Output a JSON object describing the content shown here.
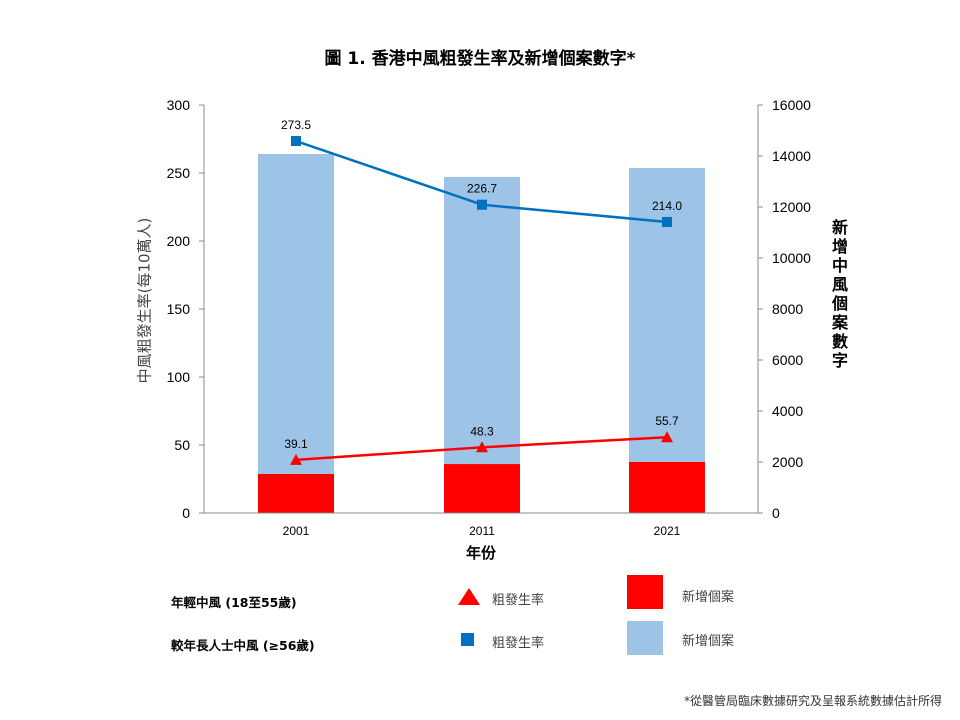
{
  "chart_data": {
    "type": "bar+line",
    "title": "圖 1. 香港中風粗發生率及新增個案數字*",
    "xlabel": "年份",
    "ylabel_left": "中風粗發生率(每10萬人)",
    "ylabel_right": "新增中風個案數字",
    "categories": [
      "2001",
      "2011",
      "2021"
    ],
    "ylim_left": [
      0,
      300
    ],
    "yticks_left": [
      "0",
      "50",
      "100",
      "150",
      "200",
      "250",
      "300"
    ],
    "ylim_right": [
      0,
      16000
    ],
    "yticks_right": [
      "0",
      "2000",
      "4000",
      "6000",
      "8000",
      "10000",
      "12000",
      "14000",
      "16000"
    ],
    "grid": false,
    "bars_stacked": [
      {
        "name": "新增個案",
        "group": "年輕中風 (18至55歲)",
        "color": "#FF0000",
        "values": [
          1530,
          1920,
          2000
        ]
      },
      {
        "name": "新增個案",
        "group": "較年長人士中風 (≥56歲)",
        "color": "#9DC3E6",
        "values": [
          12550,
          11260,
          11530
        ]
      }
    ],
    "lines": [
      {
        "name": "粗發生率",
        "group": "年輕中風 (18至55歲)",
        "color": "#FF0000",
        "marker": "triangle",
        "values": [
          39.1,
          48.3,
          55.7
        ],
        "labels": [
          "39.1",
          "48.3",
          "55.7"
        ]
      },
      {
        "name": "粗發生率",
        "group": "較年長人士中風 (≥56歲)",
        "color": "#0070C0",
        "marker": "square",
        "values": [
          273.5,
          226.7,
          214.0
        ],
        "labels": [
          "273.5",
          "226.7",
          "214.0"
        ]
      }
    ],
    "legend": {
      "placement": "bottom",
      "rows": [
        {
          "label": "年輕中風 (18至55歲)",
          "line_label": "粗發生率",
          "bar_label": "新增個案"
        },
        {
          "label": "較年長人士中風 (≥56歲)",
          "line_label": "粗發生率",
          "bar_label": "新增個案"
        }
      ]
    },
    "footnote": "*從醫管局臨床數據研究及呈報系統數據估計所得"
  }
}
